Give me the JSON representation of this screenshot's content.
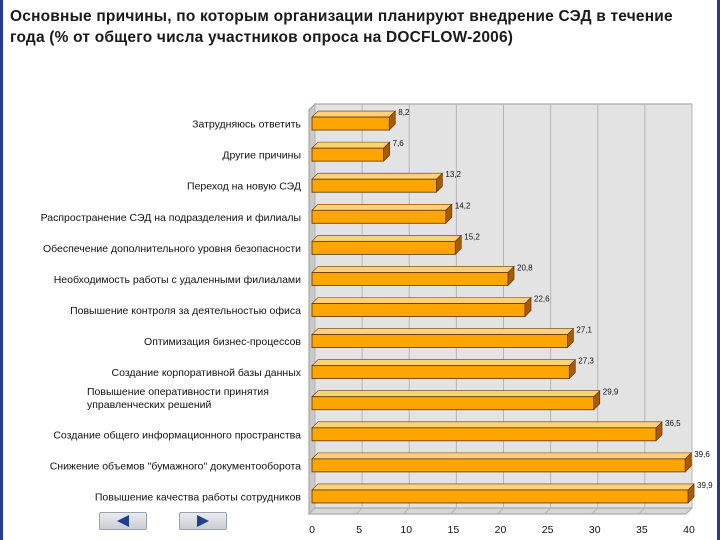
{
  "title": "Основные причины, по которым организации планируют внедрение СЭД в течение   года (% от общего числа участников опроса на DOCFLOW-2006)",
  "colors": {
    "bar_fill": "#ffa500",
    "bar_side": "#a85a00",
    "bar_top": "#ffd27a",
    "plot_background": "#e3e3e3",
    "grid": "#b4b4b4"
  },
  "nav": {
    "prev_icon": "triangle-left-icon",
    "next_icon": "triangle-right-icon"
  },
  "chart_data": {
    "type": "bar",
    "orientation": "horizontal",
    "categories": [
      "Затрудняюсь ответить",
      "Другие причины",
      "Переход на новую СЭД",
      "Распространение СЭД на подразделения и филиалы",
      "Обеспечение дополнительного уровня безопасности",
      "Необходимость работы с удаленными филиалами",
      "Повышение контроля за деятельностью офиса",
      "Оптимизация бизнес-процессов",
      "Создание корпоративной базы данных",
      "Повышение оперативности принятия управленческих решений",
      "Создание общего информационного пространства",
      "Снижение объемов \"бумажного\" документооборота",
      "Повышение качества работы сотрудников"
    ],
    "values": [
      8.2,
      7.6,
      13.2,
      14.2,
      15.2,
      20.8,
      22.6,
      27.1,
      27.3,
      29.9,
      36.5,
      39.6,
      39.9
    ],
    "value_labels": [
      "8,2",
      "7,6",
      "13,2",
      "14,2",
      "15,2",
      "20,8",
      "22,6",
      "27,1",
      "27,3",
      "29,9",
      "36,5",
      "39,6",
      "39,9"
    ],
    "xlim": [
      0,
      40
    ],
    "xticks": [
      0,
      5,
      10,
      15,
      20,
      25,
      30,
      35,
      40
    ],
    "grid": true,
    "xlabel": "",
    "ylabel": ""
  }
}
